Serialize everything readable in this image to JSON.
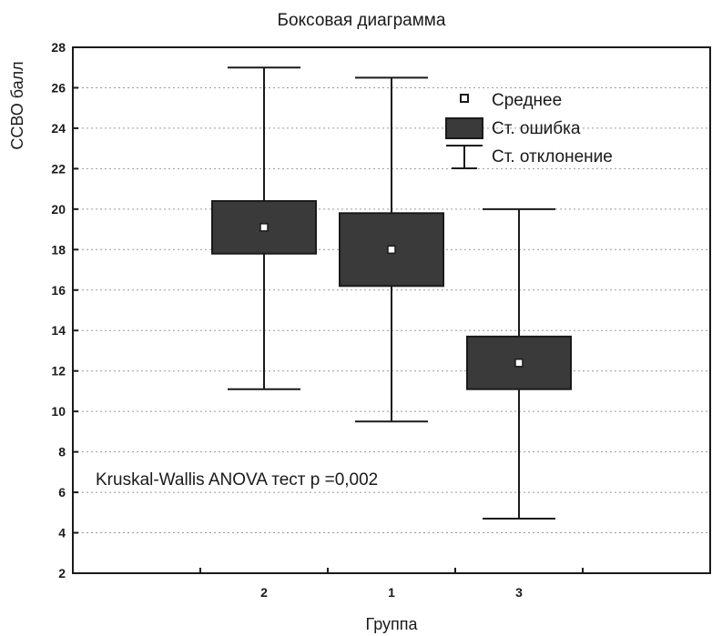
{
  "chart_data": {
    "type": "box",
    "title": "Боксовая диаграмма",
    "xlabel": "Группа",
    "ylabel": "ССВО балл",
    "ylim": [
      2,
      28
    ],
    "yticks": [
      2,
      4,
      6,
      8,
      10,
      12,
      14,
      16,
      18,
      20,
      22,
      24,
      26,
      28
    ],
    "grid": "horizontal-dotted",
    "categories": [
      "2",
      "1",
      "3"
    ],
    "groups": [
      {
        "category": "2",
        "mean": 19.1,
        "se_low": 17.8,
        "se_high": 20.4,
        "sd_low": 11.1,
        "sd_high": 27.0
      },
      {
        "category": "1",
        "mean": 18.0,
        "se_low": 16.2,
        "se_high": 19.8,
        "sd_low": 9.5,
        "sd_high": 26.5
      },
      {
        "category": "3",
        "mean": 12.4,
        "se_low": 11.1,
        "se_high": 13.7,
        "sd_low": 4.7,
        "sd_high": 20.0
      }
    ],
    "legend": {
      "position": "top-right",
      "items": [
        {
          "key": "mean",
          "label": "Среднее"
        },
        {
          "key": "se",
          "label": "Ст. ошибка"
        },
        {
          "key": "sd",
          "label": "Ст. отклонение"
        }
      ]
    },
    "annotation": "Kruskal-Wallis ANOVA тест  p =0,002",
    "colors": {
      "box_fill": "#3a3a3a",
      "line": "#1a1a1a",
      "mean_fill": "#ffffff",
      "grid": "#9a9a9a"
    }
  }
}
